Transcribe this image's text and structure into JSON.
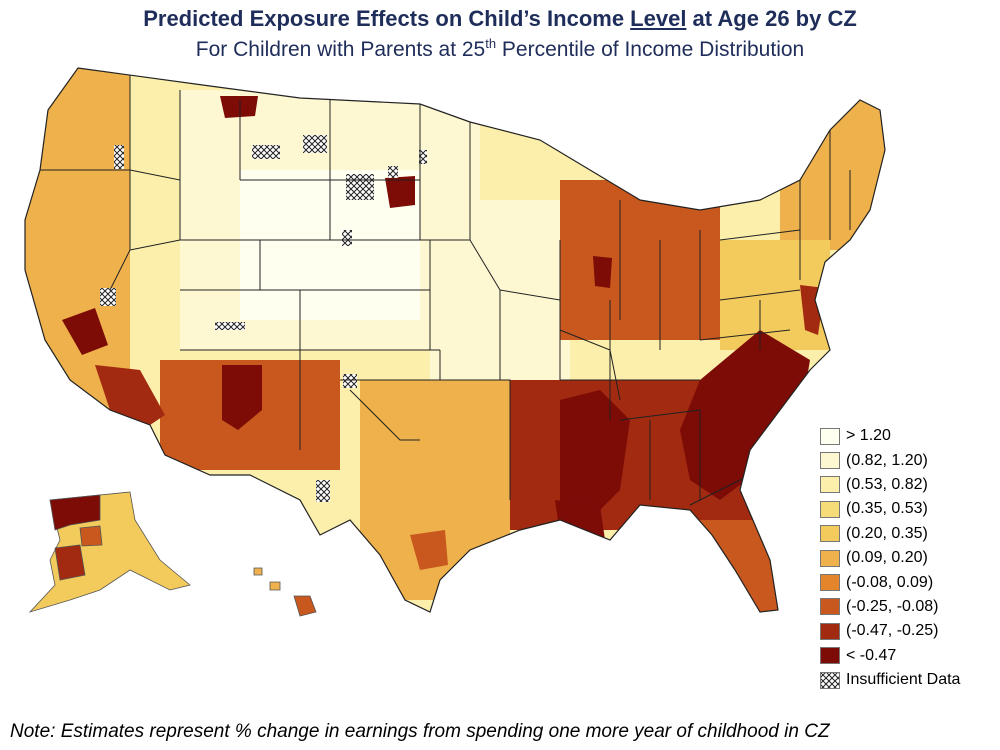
{
  "title": {
    "prefix": "Predicted Exposure Effects on Child’s Income ",
    "underlined": "Level",
    "suffix": " at Age 26 by CZ"
  },
  "subtitle": {
    "before": "For Children with Parents at 25",
    "sup": "th",
    "after": " Percentile of Income Distribution"
  },
  "legend": [
    {
      "label": "> 1.20",
      "color": "#fffff0"
    },
    {
      "label": "(0.82, 1.20)",
      "color": "#fdf8d2"
    },
    {
      "label": "(0.53, 0.82)",
      "color": "#fcefab"
    },
    {
      "label": "(0.35, 0.53)",
      "color": "#f6dc78"
    },
    {
      "label": "(0.20, 0.35)",
      "color": "#f3cb5c"
    },
    {
      "label": "(0.09, 0.20)",
      "color": "#eeb14c"
    },
    {
      "label": "(-0.08, 0.09)",
      "color": "#e4852c"
    },
    {
      "label": "(-0.25, -0.08)",
      "color": "#c8581d"
    },
    {
      "label": "(-0.47, -0.25)",
      "color": "#a22a10"
    },
    {
      "label": "< -0.47",
      "color": "#7d0b06"
    },
    {
      "label": "Insufficient Data",
      "color": "hatch"
    }
  ],
  "note": "Note: Estimates represent % change in earnings from spending one more year of childhood in CZ"
}
